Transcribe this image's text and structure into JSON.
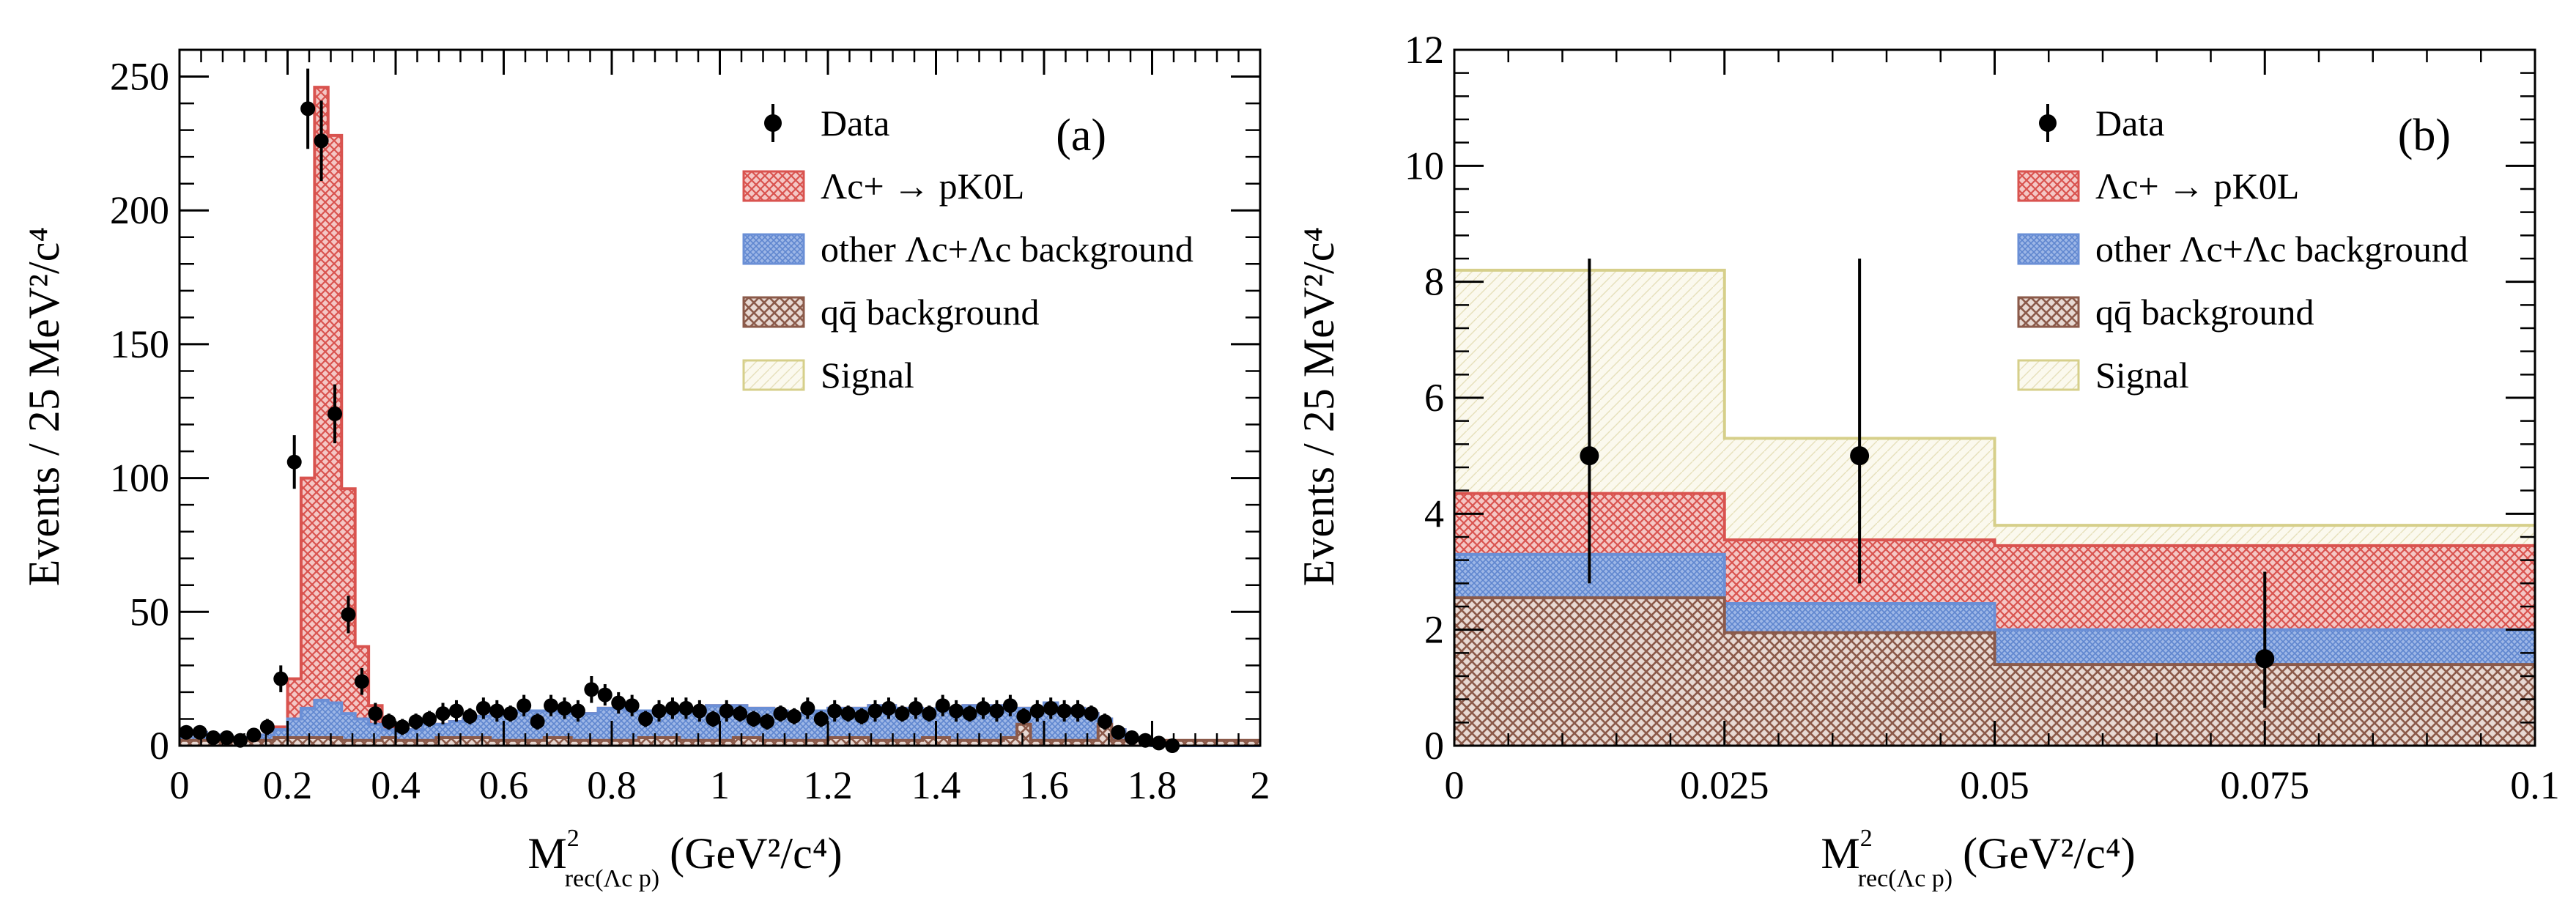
{
  "chart_data": [
    {
      "type": "histogram",
      "panel_label": "(a)",
      "xlabel": "M",
      "xlabel_sup": "2",
      "xlabel_sub": "rec(Λc p)",
      "xlabel_units": "(GeV²/c⁴)",
      "ylabel": "Events / 25 MeV²/c⁴",
      "xlim": [
        0,
        2
      ],
      "ylim": [
        0,
        260
      ],
      "xticks": [
        0,
        0.2,
        0.4,
        0.6,
        0.8,
        1,
        1.2,
        1.4,
        1.6,
        1.8,
        2
      ],
      "xtick_labels": [
        "0",
        "0.2",
        "0.4",
        "0.6",
        "0.8",
        "1",
        "1.2",
        "1.4",
        "1.6",
        "1.8",
        "2"
      ],
      "yticks": [
        0,
        50,
        100,
        150,
        200,
        250
      ],
      "ytick_labels": [
        "0",
        "50",
        "100",
        "150",
        "200",
        "250"
      ],
      "legend": {
        "placement": "top-right",
        "entries": [
          {
            "label": "Data",
            "kind": "marker"
          },
          {
            "label": "Λc+ → pK0L",
            "kind": "signal-mc",
            "color": "#d9534f"
          },
          {
            "label": "other Λc+Λc background",
            "kind": "other-bkg",
            "color": "#6a8fd6"
          },
          {
            "label": "qq̄ background",
            "kind": "qq-bkg",
            "color": "#8b5a4a"
          },
          {
            "label": "Signal",
            "kind": "signal",
            "color": "#d6cf8a"
          }
        ]
      },
      "bin_width": 0.025,
      "series": [
        {
          "name": "qq̄ background",
          "values": [
            2,
            2,
            2,
            2,
            2,
            2,
            2,
            3,
            3,
            3,
            3,
            3,
            2,
            2,
            2,
            3,
            2,
            2,
            2,
            3,
            3,
            3,
            3,
            2,
            2,
            2,
            2,
            3,
            3,
            2,
            2,
            2,
            2,
            2,
            3,
            3,
            3,
            2,
            2,
            2,
            2,
            3,
            3,
            2,
            2,
            2,
            2,
            2,
            3,
            3,
            3,
            2,
            2,
            2,
            2,
            3,
            3,
            2,
            2,
            2,
            2,
            3,
            8,
            2,
            2,
            2,
            2,
            2,
            8,
            2,
            2,
            2,
            2,
            2,
            2,
            2,
            2,
            2,
            2,
            2
          ]
        },
        {
          "name": "other Λc+Λc background",
          "values": [
            5,
            5,
            4,
            3,
            2,
            3,
            4,
            6,
            10,
            14,
            17,
            16,
            12,
            10,
            8,
            6,
            5,
            6,
            8,
            8,
            9,
            10,
            11,
            12,
            13,
            13,
            13,
            13,
            12,
            12,
            12,
            14,
            14,
            13,
            13,
            13,
            13,
            12,
            13,
            15,
            15,
            15,
            14,
            14,
            13,
            12,
            12,
            13,
            14,
            14,
            14,
            15,
            15,
            14,
            14,
            13,
            14,
            14,
            15,
            15,
            15,
            14,
            14,
            13,
            16,
            14,
            14,
            12,
            10,
            6,
            3,
            1,
            0,
            0,
            0,
            0,
            0,
            0,
            0,
            0
          ]
        },
        {
          "name": "Λc+ → pK0L",
          "values": [
            5,
            5,
            4,
            3,
            2,
            3,
            4,
            7,
            25,
            100,
            246,
            228,
            96,
            37,
            15,
            8,
            6,
            6,
            8,
            8,
            9,
            10,
            11,
            12,
            13,
            13,
            13,
            13,
            12,
            12,
            12,
            14,
            14,
            13,
            13,
            13,
            13,
            12,
            13,
            15,
            15,
            15,
            14,
            14,
            13,
            12,
            12,
            13,
            14,
            14,
            14,
            15,
            15,
            14,
            14,
            13,
            14,
            14,
            15,
            15,
            15,
            14,
            14,
            13,
            16,
            14,
            14,
            12,
            10,
            6,
            3,
            1,
            0,
            0,
            0,
            0,
            0,
            0,
            0,
            0
          ]
        },
        {
          "name": "Data",
          "x": [
            0.0125,
            0.0375,
            0.0625,
            0.0875,
            0.1125,
            0.1375,
            0.1625,
            0.1875,
            0.2125,
            0.2375,
            0.2625,
            0.2875,
            0.3125,
            0.3375,
            0.3625,
            0.3875,
            0.4125,
            0.4375,
            0.4625,
            0.4875,
            0.5125,
            0.5375,
            0.5625,
            0.5875,
            0.6125,
            0.6375,
            0.6625,
            0.6875,
            0.7125,
            0.7375,
            0.7625,
            0.7875,
            0.8125,
            0.8375,
            0.8625,
            0.8875,
            0.9125,
            0.9375,
            0.9625,
            0.9875,
            1.0125,
            1.0375,
            1.0625,
            1.0875,
            1.1125,
            1.1375,
            1.1625,
            1.1875,
            1.2125,
            1.2375,
            1.2625,
            1.2875,
            1.3125,
            1.3375,
            1.3625,
            1.3875,
            1.4125,
            1.4375,
            1.4625,
            1.4875,
            1.5125,
            1.5375,
            1.5625,
            1.5875,
            1.6125,
            1.6375,
            1.6625,
            1.6875,
            1.7125,
            1.7375,
            1.7625,
            1.7875,
            1.8125,
            1.8375
          ],
          "values": [
            5,
            5,
            3,
            3,
            2,
            4,
            7,
            25,
            106,
            238,
            226,
            124,
            49,
            24,
            12,
            9,
            7,
            9,
            10,
            12,
            13,
            11,
            14,
            13,
            12,
            15,
            9,
            15,
            14,
            13,
            21,
            19,
            16,
            15,
            10,
            13,
            14,
            14,
            13,
            10,
            13,
            12,
            10,
            9,
            12,
            11,
            14,
            10,
            13,
            12,
            11,
            13,
            14,
            12,
            14,
            12,
            15,
            13,
            12,
            14,
            13,
            15,
            11,
            13,
            14,
            13,
            13,
            12,
            9,
            5,
            3,
            2,
            1,
            0
          ],
          "errors": [
            2,
            2,
            2,
            2,
            2,
            2,
            3,
            5,
            10,
            15,
            15,
            11,
            7,
            5,
            4,
            3,
            3,
            3,
            3,
            4,
            4,
            3,
            4,
            4,
            3,
            4,
            3,
            4,
            4,
            4,
            5,
            4,
            4,
            4,
            3,
            4,
            4,
            4,
            4,
            3,
            4,
            3,
            3,
            3,
            3,
            3,
            4,
            3,
            4,
            3,
            3,
            4,
            4,
            3,
            4,
            3,
            4,
            4,
            3,
            4,
            4,
            4,
            3,
            4,
            4,
            4,
            4,
            3,
            3,
            2,
            2,
            1,
            1,
            1
          ]
        }
      ]
    },
    {
      "type": "histogram",
      "panel_label": "(b)",
      "xlabel": "M",
      "xlabel_sup": "2",
      "xlabel_sub": "rec(Λc p)",
      "xlabel_units": "(GeV²/c⁴)",
      "ylabel": "Events / 25 MeV²/c⁴",
      "xlim": [
        0,
        0.1
      ],
      "ylim": [
        0,
        12
      ],
      "xticks": [
        0,
        0.025,
        0.05,
        0.075,
        0.1
      ],
      "xtick_labels": [
        "0",
        "0.025",
        "0.05",
        "0.075",
        "0.1"
      ],
      "yticks": [
        0,
        2,
        4,
        6,
        8,
        10,
        12
      ],
      "ytick_labels": [
        "0",
        "2",
        "4",
        "6",
        "8",
        "10",
        "12"
      ],
      "legend": {
        "placement": "top-right",
        "entries": [
          {
            "label": "Data",
            "kind": "marker"
          },
          {
            "label": "Λc+ → pK0L",
            "kind": "signal-mc",
            "color": "#d9534f"
          },
          {
            "label": "other Λc+Λc background",
            "kind": "other-bkg",
            "color": "#6a8fd6"
          },
          {
            "label": "qq̄ background",
            "kind": "qq-bkg",
            "color": "#8b5a4a"
          },
          {
            "label": "Signal",
            "kind": "signal",
            "color": "#d6cf8a"
          }
        ]
      },
      "bin_edges": [
        0,
        0.025,
        0.05,
        0.1
      ],
      "series": [
        {
          "name": "qq̄ background",
          "values": [
            2.55,
            1.95,
            1.4
          ]
        },
        {
          "name": "other Λc+Λc background",
          "values": [
            3.3,
            2.45,
            2.0
          ]
        },
        {
          "name": "Λc+ → pK0L",
          "values": [
            4.35,
            3.55,
            3.45
          ]
        },
        {
          "name": "Signal",
          "values": [
            8.2,
            5.3,
            3.8
          ]
        },
        {
          "name": "Data",
          "x": [
            0.0125,
            0.0375,
            0.075
          ],
          "values": [
            5,
            5,
            1.5
          ],
          "err_low": [
            2.2,
            2.2,
            0.85
          ],
          "err_high": [
            3.4,
            3.4,
            1.5
          ]
        }
      ]
    }
  ]
}
